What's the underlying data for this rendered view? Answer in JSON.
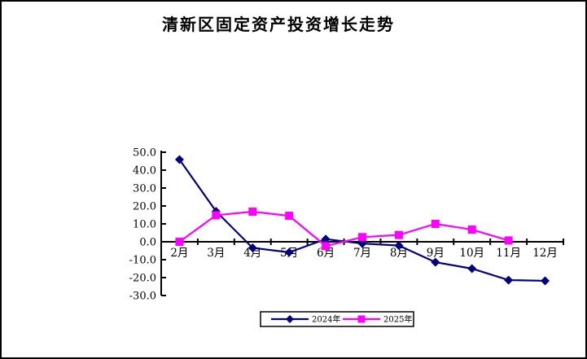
{
  "window": {
    "background": "#ffffff",
    "border_color": "#000000"
  },
  "chart_data": {
    "type": "line",
    "title": "清新区固定资产投资增长走势",
    "categories": [
      "2月",
      "3月",
      "4月",
      "5月",
      "6月",
      "7月",
      "8月",
      "9月",
      "10月",
      "11月",
      "12月"
    ],
    "series": [
      {
        "name": "2024年",
        "color": "#000080",
        "marker": "diamond",
        "values": [
          45.9,
          17.0,
          -3.4,
          -5.9,
          1.5,
          -1.0,
          -2.1,
          -11.4,
          -15.0,
          -21.4,
          -21.8
        ]
      },
      {
        "name": "2025年",
        "color": "#FF00FF",
        "marker": "square",
        "values": [
          0.0,
          14.8,
          16.8,
          14.5,
          -2.4,
          2.6,
          3.8,
          10.0,
          6.8,
          0.7,
          null
        ]
      }
    ],
    "xlabel": "",
    "ylabel": "",
    "ylim": [
      -30,
      50
    ],
    "ytick_step": 10,
    "ytick_labels": [
      "50.0",
      "40.0",
      "30.0",
      "20.0",
      "10.0",
      "0.0",
      "-10.0",
      "-20.0",
      "-30.0"
    ],
    "grid": false,
    "legend_position": "bottom",
    "axis_color": "#000000"
  }
}
